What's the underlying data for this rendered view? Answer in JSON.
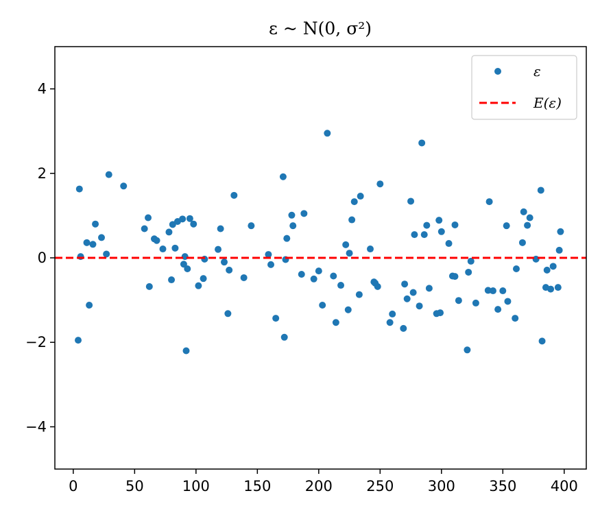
{
  "chart_data": {
    "type": "scatter",
    "title": "ε ~ N(0, σ²)",
    "xlabel": "",
    "ylabel": "",
    "xlim": [
      -15,
      418
    ],
    "ylim": [
      -5,
      5
    ],
    "x_ticks": [
      0,
      50,
      100,
      150,
      200,
      250,
      300,
      350,
      400
    ],
    "y_ticks": [
      -4,
      -2,
      0,
      2,
      4
    ],
    "x_tick_labels": [
      "0",
      "50",
      "100",
      "150",
      "200",
      "250",
      "300",
      "350",
      "400"
    ],
    "y_tick_labels": [
      "−4",
      "−2",
      "0",
      "2",
      "4"
    ],
    "grid": false,
    "legend_position": "top-right",
    "series": [
      {
        "name": "ε",
        "kind": "points",
        "color": "#1f77b4",
        "points": [
          [
            4,
            -1.95
          ],
          [
            5,
            1.63
          ],
          [
            6,
            0.03
          ],
          [
            11,
            0.36
          ],
          [
            13,
            -1.12
          ],
          [
            16,
            0.32
          ],
          [
            18,
            0.8
          ],
          [
            23,
            0.48
          ],
          [
            27,
            0.09
          ],
          [
            29,
            1.97
          ],
          [
            41,
            1.7
          ],
          [
            58,
            0.69
          ],
          [
            61,
            0.95
          ],
          [
            62,
            -0.68
          ],
          [
            66,
            0.45
          ],
          [
            68,
            0.41
          ],
          [
            73,
            0.21
          ],
          [
            78,
            0.61
          ],
          [
            80,
            -0.52
          ],
          [
            81,
            0.79
          ],
          [
            83,
            0.23
          ],
          [
            85,
            0.86
          ],
          [
            89,
            0.92
          ],
          [
            90,
            -0.15
          ],
          [
            91,
            0.03
          ],
          [
            92,
            -2.2
          ],
          [
            93,
            -0.26
          ],
          [
            95,
            0.93
          ],
          [
            98,
            0.8
          ],
          [
            102,
            -0.66
          ],
          [
            106,
            -0.49
          ],
          [
            107,
            -0.03
          ],
          [
            118,
            0.2
          ],
          [
            120,
            0.69
          ],
          [
            123,
            -0.1
          ],
          [
            126,
            -1.32
          ],
          [
            127,
            -0.29
          ],
          [
            131,
            1.48
          ],
          [
            139,
            -0.47
          ],
          [
            145,
            0.76
          ],
          [
            159,
            0.08
          ],
          [
            161,
            -0.16
          ],
          [
            165,
            -1.43
          ],
          [
            171,
            1.92
          ],
          [
            172,
            -1.88
          ],
          [
            173,
            -0.04
          ],
          [
            174,
            0.46
          ],
          [
            178,
            1.01
          ],
          [
            179,
            0.76
          ],
          [
            186,
            -0.39
          ],
          [
            188,
            1.05
          ],
          [
            196,
            -0.5
          ],
          [
            200,
            -0.31
          ],
          [
            203,
            -1.12
          ],
          [
            207,
            2.95
          ],
          [
            212,
            -0.43
          ],
          [
            214,
            -1.53
          ],
          [
            218,
            -0.65
          ],
          [
            222,
            0.31
          ],
          [
            224,
            -1.23
          ],
          [
            225,
            0.11
          ],
          [
            227,
            0.9
          ],
          [
            229,
            1.33
          ],
          [
            233,
            -0.87
          ],
          [
            234,
            1.46
          ],
          [
            242,
            0.21
          ],
          [
            245,
            -0.57
          ],
          [
            246,
            -0.6
          ],
          [
            248,
            -0.68
          ],
          [
            250,
            1.75
          ],
          [
            258,
            -1.53
          ],
          [
            260,
            -1.33
          ],
          [
            269,
            -1.67
          ],
          [
            270,
            -0.62
          ],
          [
            272,
            -0.97
          ],
          [
            275,
            1.34
          ],
          [
            277,
            -0.82
          ],
          [
            278,
            0.55
          ],
          [
            282,
            -1.14
          ],
          [
            284,
            2.72
          ],
          [
            286,
            0.55
          ],
          [
            288,
            0.77
          ],
          [
            290,
            -0.72
          ],
          [
            296,
            -1.32
          ],
          [
            298,
            0.89
          ],
          [
            299,
            -1.3
          ],
          [
            300,
            0.62
          ],
          [
            306,
            0.34
          ],
          [
            309,
            -0.43
          ],
          [
            311,
            0.78
          ],
          [
            311,
            -0.44
          ],
          [
            314,
            -1.01
          ],
          [
            321,
            -2.18
          ],
          [
            322,
            -0.34
          ],
          [
            324,
            -0.08
          ],
          [
            328,
            -1.07
          ],
          [
            338,
            -0.77
          ],
          [
            339,
            1.33
          ],
          [
            342,
            -0.78
          ],
          [
            346,
            -1.22
          ],
          [
            350,
            -0.78
          ],
          [
            353,
            0.76
          ],
          [
            354,
            -1.03
          ],
          [
            360,
            -1.43
          ],
          [
            361,
            -0.26
          ],
          [
            366,
            0.36
          ],
          [
            367,
            1.09
          ],
          [
            370,
            0.77
          ],
          [
            372,
            0.95
          ],
          [
            377,
            -0.03
          ],
          [
            381,
            1.6
          ],
          [
            382,
            -1.97
          ],
          [
            385,
            -0.7
          ],
          [
            386,
            -0.29
          ],
          [
            389,
            -0.74
          ],
          [
            391,
            -0.2
          ],
          [
            395,
            -0.7
          ],
          [
            396,
            0.18
          ],
          [
            397,
            0.62
          ]
        ]
      },
      {
        "name": "E(ε)",
        "kind": "hline",
        "color": "#ff0000",
        "y": 0,
        "style": "dashed"
      }
    ]
  }
}
